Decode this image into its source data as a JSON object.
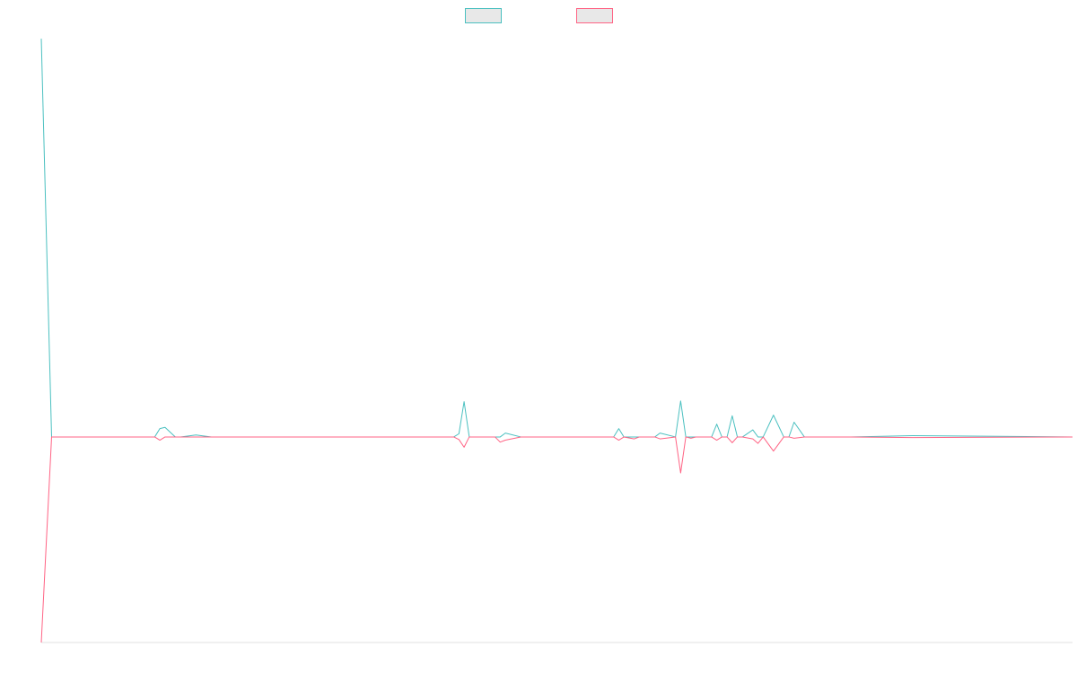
{
  "chart_data": {
    "type": "line",
    "title": "",
    "xlabel": "",
    "ylabel": "",
    "legend": {
      "placement": "top-center",
      "entries": [
        {
          "color": "#4bc0c0"
        },
        {
          "color": "#ff6384"
        }
      ]
    },
    "grid": false,
    "ylim": [
      -3200,
      6300
    ],
    "x": [
      0,
      2,
      22,
      23,
      24,
      26,
      27,
      30,
      33,
      80,
      81,
      82,
      83,
      84,
      88,
      89,
      90,
      93,
      94,
      95,
      111,
      112,
      113,
      115,
      116,
      119,
      120,
      123,
      124,
      125,
      126,
      127,
      129,
      130,
      131,
      132,
      133,
      134,
      135,
      136,
      138,
      139,
      140,
      142,
      144,
      145,
      146,
      148,
      157,
      169,
      200
    ],
    "series": [
      {
        "color": "#4bc0c0",
        "values": [
          6200,
          0,
          0,
          130,
          150,
          0,
          0,
          30,
          0,
          0,
          50,
          550,
          0,
          0,
          0,
          0,
          60,
          0,
          0,
          0,
          0,
          130,
          0,
          0,
          0,
          0,
          60,
          0,
          560,
          0,
          0,
          0,
          0,
          0,
          200,
          0,
          0,
          330,
          0,
          0,
          110,
          0,
          0,
          340,
          0,
          0,
          230,
          0,
          0,
          20,
          0
        ]
      },
      {
        "color": "#ff6384",
        "values": [
          -3200,
          0,
          0,
          -50,
          0,
          0,
          0,
          0,
          0,
          0,
          -40,
          -160,
          0,
          0,
          0,
          -80,
          -50,
          0,
          0,
          0,
          0,
          -50,
          0,
          -30,
          0,
          0,
          -30,
          0,
          -560,
          0,
          -20,
          0,
          0,
          0,
          -50,
          0,
          0,
          -90,
          0,
          0,
          -30,
          -100,
          0,
          -220,
          0,
          0,
          -20,
          0,
          0,
          -10,
          0
        ]
      }
    ]
  }
}
